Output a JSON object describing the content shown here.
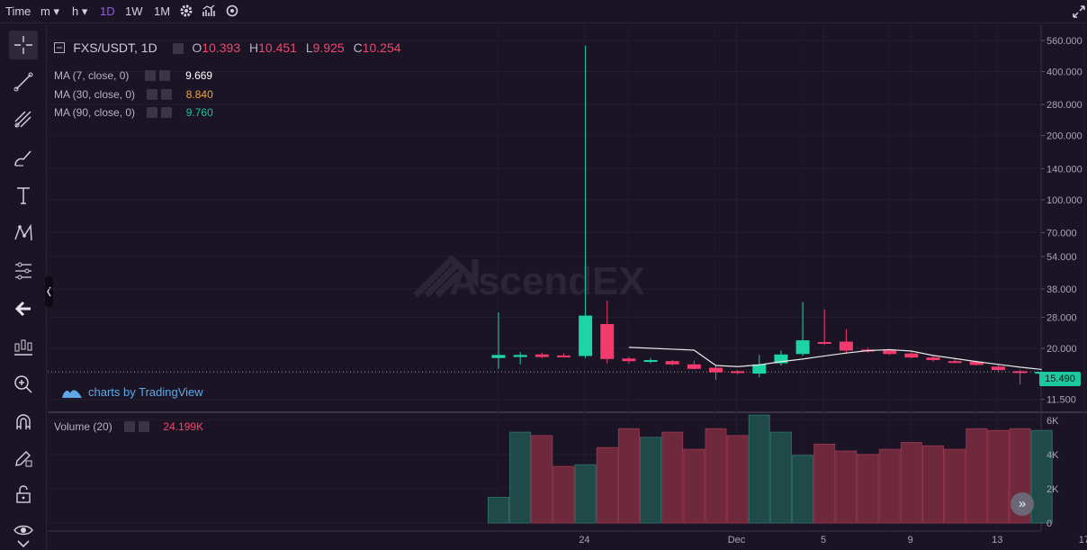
{
  "toolbar": {
    "time_label": "Time",
    "minute_label": "m",
    "hour_label": "h",
    "intervals": [
      "1D",
      "1W",
      "1M"
    ],
    "active_interval": "1D"
  },
  "legend": {
    "symbol": "FXS/USDT, 1D",
    "ohlc": [
      {
        "key": "O",
        "value": "10.393"
      },
      {
        "key": "H",
        "value": "10.451"
      },
      {
        "key": "L",
        "value": "9.925"
      },
      {
        "key": "C",
        "value": "10.254"
      }
    ],
    "ma": [
      {
        "label": "MA (7, close, 0)",
        "value": "9.669",
        "color": "#ffffff"
      },
      {
        "label": "MA (30, close, 0)",
        "value": "8.840",
        "color": "#f0a53a"
      },
      {
        "label": "MA (90, close, 0)",
        "value": "9.760",
        "color": "#1fc39a"
      }
    ],
    "volume_label": "Volume (20)",
    "volume_value": "24.199K"
  },
  "watermark": "AscendEX",
  "credit": "charts by TradingView",
  "current_price": "15.490",
  "colors": {
    "up": "#1cd4a4",
    "down": "#f23a6c",
    "ma7": "#e8e8e8",
    "text_down": "#f0466f",
    "text_up": "#1fc39a"
  },
  "chart_data": {
    "type": "candlestick",
    "price_axis_ticks": [
      "560.000",
      "400.000",
      "280.000",
      "200.000",
      "140.000",
      "100.000",
      "70.000",
      "54.000",
      "38.000",
      "28.000",
      "20.000",
      "11.500"
    ],
    "price_scale": "log",
    "ylim": [
      10.5,
      600
    ],
    "volume_axis_ticks": [
      "6K",
      "4K",
      "2K",
      "0"
    ],
    "volume_ylim": [
      0,
      6200
    ],
    "x_tick_labels": [
      {
        "day": 3,
        "label": "24"
      },
      {
        "day": 10,
        "label": "Dec"
      },
      {
        "day": 14,
        "label": "5"
      },
      {
        "day": 18,
        "label": "9"
      },
      {
        "day": 22,
        "label": "13"
      },
      {
        "day": 26,
        "label": "17"
      }
    ],
    "candles": [
      {
        "day": 0,
        "o": 18.6,
        "h": 29.5,
        "l": 16.0,
        "c": 18.0,
        "up": true
      },
      {
        "day": 1,
        "o": 18.2,
        "h": 19.2,
        "l": 16.8,
        "c": 18.6,
        "up": true
      },
      {
        "day": 2,
        "o": 18.7,
        "h": 19.1,
        "l": 18.0,
        "c": 18.2,
        "up": false
      },
      {
        "day": 3,
        "o": 18.5,
        "h": 18.9,
        "l": 18.1,
        "c": 18.3,
        "up": false
      },
      {
        "day": 4,
        "o": 18.4,
        "h": 530.0,
        "l": 18.0,
        "c": 28.5,
        "up": true
      },
      {
        "day": 5,
        "o": 26.0,
        "h": 33.5,
        "l": 17.0,
        "c": 17.8,
        "up": false
      },
      {
        "day": 6,
        "o": 17.9,
        "h": 18.2,
        "l": 17.0,
        "c": 17.4,
        "up": false
      },
      {
        "day": 7,
        "o": 17.5,
        "h": 18.0,
        "l": 17.0,
        "c": 17.6,
        "up": true
      },
      {
        "day": 8,
        "o": 17.4,
        "h": 17.6,
        "l": 16.6,
        "c": 16.8,
        "up": false
      },
      {
        "day": 9,
        "o": 16.8,
        "h": 17.5,
        "l": 15.9,
        "c": 16.0,
        "up": false
      },
      {
        "day": 10,
        "o": 16.2,
        "h": 16.6,
        "l": 14.2,
        "c": 15.4,
        "up": false
      },
      {
        "day": 11,
        "o": 15.6,
        "h": 15.8,
        "l": 15.1,
        "c": 15.3,
        "up": false
      },
      {
        "day": 12,
        "o": 15.2,
        "h": 18.6,
        "l": 14.6,
        "c": 16.8,
        "up": true
      },
      {
        "day": 13,
        "o": 17.0,
        "h": 19.5,
        "l": 16.6,
        "c": 18.7,
        "up": true
      },
      {
        "day": 14,
        "o": 18.8,
        "h": 33.0,
        "l": 18.4,
        "c": 21.8,
        "up": true
      },
      {
        "day": 15,
        "o": 21.4,
        "h": 30.5,
        "l": 20.8,
        "c": 21.2,
        "up": false
      },
      {
        "day": 16,
        "o": 21.5,
        "h": 24.6,
        "l": 18.8,
        "c": 19.5,
        "up": false
      },
      {
        "day": 17,
        "o": 19.7,
        "h": 20.1,
        "l": 19.1,
        "c": 19.4,
        "up": false
      },
      {
        "day": 18,
        "o": 19.6,
        "h": 19.9,
        "l": 18.6,
        "c": 18.8,
        "up": false
      },
      {
        "day": 19,
        "o": 18.9,
        "h": 19.2,
        "l": 17.9,
        "c": 18.1,
        "up": false
      },
      {
        "day": 20,
        "o": 18.1,
        "h": 18.4,
        "l": 17.3,
        "c": 17.6,
        "up": false
      },
      {
        "day": 21,
        "o": 17.4,
        "h": 17.8,
        "l": 17.0,
        "c": 17.1,
        "up": false
      },
      {
        "day": 22,
        "o": 17.3,
        "h": 17.5,
        "l": 16.6,
        "c": 16.7,
        "up": false
      },
      {
        "day": 23,
        "o": 16.4,
        "h": 16.7,
        "l": 15.6,
        "c": 15.8,
        "up": false
      },
      {
        "day": 24,
        "o": 15.6,
        "h": 15.8,
        "l": 13.5,
        "c": 15.4,
        "up": false
      },
      {
        "day": 25,
        "o": 15.3,
        "h": 15.6,
        "l": 15.1,
        "c": 15.49,
        "up": true
      }
    ],
    "ma7": [
      {
        "day": 6,
        "v": 20.2
      },
      {
        "day": 7,
        "v": 20.0
      },
      {
        "day": 8,
        "v": 19.8
      },
      {
        "day": 9,
        "v": 19.6
      },
      {
        "day": 10,
        "v": 16.6
      },
      {
        "day": 11,
        "v": 16.4
      },
      {
        "day": 12,
        "v": 16.7
      },
      {
        "day": 13,
        "v": 17.3
      },
      {
        "day": 14,
        "v": 17.8
      },
      {
        "day": 15,
        "v": 18.4
      },
      {
        "day": 16,
        "v": 19.0
      },
      {
        "day": 17,
        "v": 19.5
      },
      {
        "day": 18,
        "v": 19.7
      },
      {
        "day": 19,
        "v": 19.4
      },
      {
        "day": 20,
        "v": 18.5
      },
      {
        "day": 21,
        "v": 17.9
      },
      {
        "day": 22,
        "v": 17.3
      },
      {
        "day": 23,
        "v": 16.8
      },
      {
        "day": 24,
        "v": 16.3
      },
      {
        "day": 25,
        "v": 15.9
      }
    ],
    "volume": [
      {
        "day": 0,
        "v": 1500,
        "up": true
      },
      {
        "day": 1,
        "v": 5300,
        "up": true
      },
      {
        "day": 2,
        "v": 5100,
        "up": false
      },
      {
        "day": 3,
        "v": 3300,
        "up": false
      },
      {
        "day": 4,
        "v": 3400,
        "up": true
      },
      {
        "day": 5,
        "v": 4400,
        "up": false
      },
      {
        "day": 6,
        "v": 5500,
        "up": false
      },
      {
        "day": 7,
        "v": 5000,
        "up": true
      },
      {
        "day": 8,
        "v": 5300,
        "up": false
      },
      {
        "day": 9,
        "v": 4300,
        "up": false
      },
      {
        "day": 10,
        "v": 5500,
        "up": false
      },
      {
        "day": 11,
        "v": 5100,
        "up": false
      },
      {
        "day": 12,
        "v": 6300,
        "up": true
      },
      {
        "day": 13,
        "v": 5300,
        "up": true
      },
      {
        "day": 14,
        "v": 3950,
        "up": true
      },
      {
        "day": 15,
        "v": 4600,
        "up": false
      },
      {
        "day": 16,
        "v": 4200,
        "up": false
      },
      {
        "day": 17,
        "v": 4000,
        "up": false
      },
      {
        "day": 18,
        "v": 4300,
        "up": false
      },
      {
        "day": 19,
        "v": 4700,
        "up": false
      },
      {
        "day": 20,
        "v": 4500,
        "up": false
      },
      {
        "day": 21,
        "v": 4300,
        "up": false
      },
      {
        "day": 22,
        "v": 5500,
        "up": false
      },
      {
        "day": 23,
        "v": 5400,
        "up": false
      },
      {
        "day": 24,
        "v": 5500,
        "up": false
      },
      {
        "day": 25,
        "v": 5400,
        "up": true
      }
    ]
  }
}
